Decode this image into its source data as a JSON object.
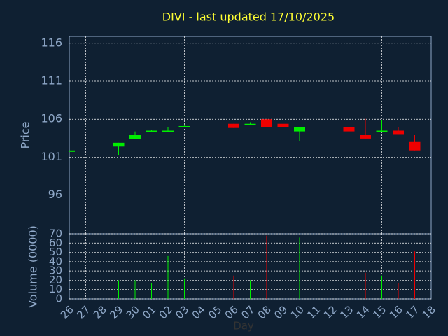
{
  "chart_data": {
    "type": "candlestick",
    "title": "DIVI - last updated 17/10/2025",
    "ylabel": "Price",
    "volume_label": "Volume (0000)",
    "xlabel": "Day",
    "categories": [
      "26",
      "27",
      "28",
      "29",
      "30",
      "01",
      "02",
      "03",
      "04",
      "05",
      "06",
      "07",
      "08",
      "09",
      "10",
      "11",
      "12",
      "13",
      "14",
      "15",
      "16",
      "17",
      "18"
    ],
    "open": [
      101.8,
      null,
      null,
      102.4,
      103.4,
      104.3,
      104.3,
      105.0,
      null,
      null,
      105.4,
      105.3,
      106.0,
      105.4,
      104.4,
      null,
      null,
      105.0,
      103.9,
      104.3,
      104.5,
      103.0,
      null
    ],
    "high": [
      101.8,
      null,
      null,
      102.9,
      104.4,
      104.6,
      104.95,
      105.3,
      null,
      null,
      105.4,
      105.6,
      106.0,
      105.4,
      105.0,
      null,
      null,
      105.0,
      106.05,
      105.9,
      104.95,
      103.9,
      null
    ],
    "low": [
      101.8,
      null,
      null,
      101.25,
      103.4,
      104.3,
      104.3,
      105.0,
      null,
      null,
      104.85,
      105.3,
      104.95,
      104.95,
      103.1,
      null,
      null,
      102.8,
      103.45,
      104.3,
      103.95,
      101.9,
      null
    ],
    "close": [
      101.8,
      null,
      null,
      102.9,
      103.9,
      104.5,
      104.5,
      105.1,
      null,
      null,
      104.85,
      105.4,
      104.95,
      104.95,
      105.0,
      null,
      null,
      104.4,
      103.45,
      104.5,
      103.95,
      101.9,
      null
    ],
    "volume": [
      null,
      null,
      null,
      20,
      20,
      17,
      46,
      22,
      null,
      null,
      25,
      20,
      68,
      33,
      66,
      null,
      null,
      36,
      28,
      25,
      17,
      51,
      null
    ],
    "up_color": "#00ee00",
    "down_color": "#ee0000",
    "ylim": [
      90.9,
      116.9
    ],
    "yticks": [
      96,
      101,
      106,
      111,
      116
    ],
    "vlim": [
      0,
      70
    ],
    "vticks": [
      0,
      10,
      20,
      30,
      40,
      50,
      60,
      70
    ],
    "grid": true
  }
}
